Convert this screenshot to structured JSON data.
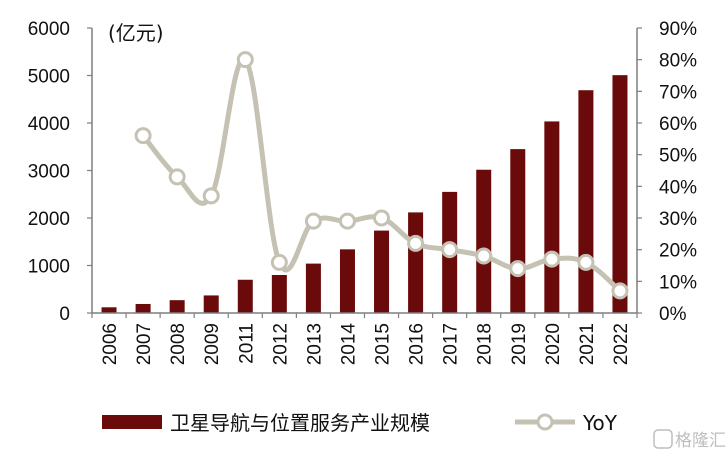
{
  "chart_data": {
    "type": "bar",
    "categories": [
      "2006",
      "2007",
      "2008",
      "2009",
      "2011",
      "2012",
      "2013",
      "2014",
      "2015",
      "2016",
      "2017",
      "2018",
      "2019",
      "2020",
      "2021",
      "2022"
    ],
    "unit_label": "(亿元)",
    "series": [
      {
        "name": "卫星导航与位置服务产业规模",
        "type": "bar",
        "axis": "left",
        "color": "#6b0a0a",
        "values": [
          120,
          190,
          270,
          370,
          700,
          800,
          1040,
          1340,
          1735,
          2118,
          2550,
          3016,
          3450,
          4033,
          4690,
          5007
        ]
      },
      {
        "name": "YoY",
        "type": "line",
        "axis": "right",
        "color": "#c5c2b4",
        "marker_fill": "#ffffff",
        "values": [
          null,
          0.56,
          0.43,
          0.37,
          0.8,
          0.16,
          0.29,
          0.29,
          0.3,
          0.22,
          0.2,
          0.18,
          0.14,
          0.17,
          0.16,
          0.07
        ]
      }
    ],
    "y_left": {
      "min": 0,
      "max": 6000,
      "ticks": [
        "0",
        "1000",
        "2000",
        "3000",
        "4000",
        "5000",
        "6000"
      ]
    },
    "y_right": {
      "min": 0,
      "max": 0.9,
      "ticks": [
        "0%",
        "10%",
        "20%",
        "30%",
        "40%",
        "50%",
        "60%",
        "70%",
        "80%",
        "90%"
      ]
    },
    "grid": false,
    "legend_position": "bottom"
  },
  "watermark": "格隆汇"
}
